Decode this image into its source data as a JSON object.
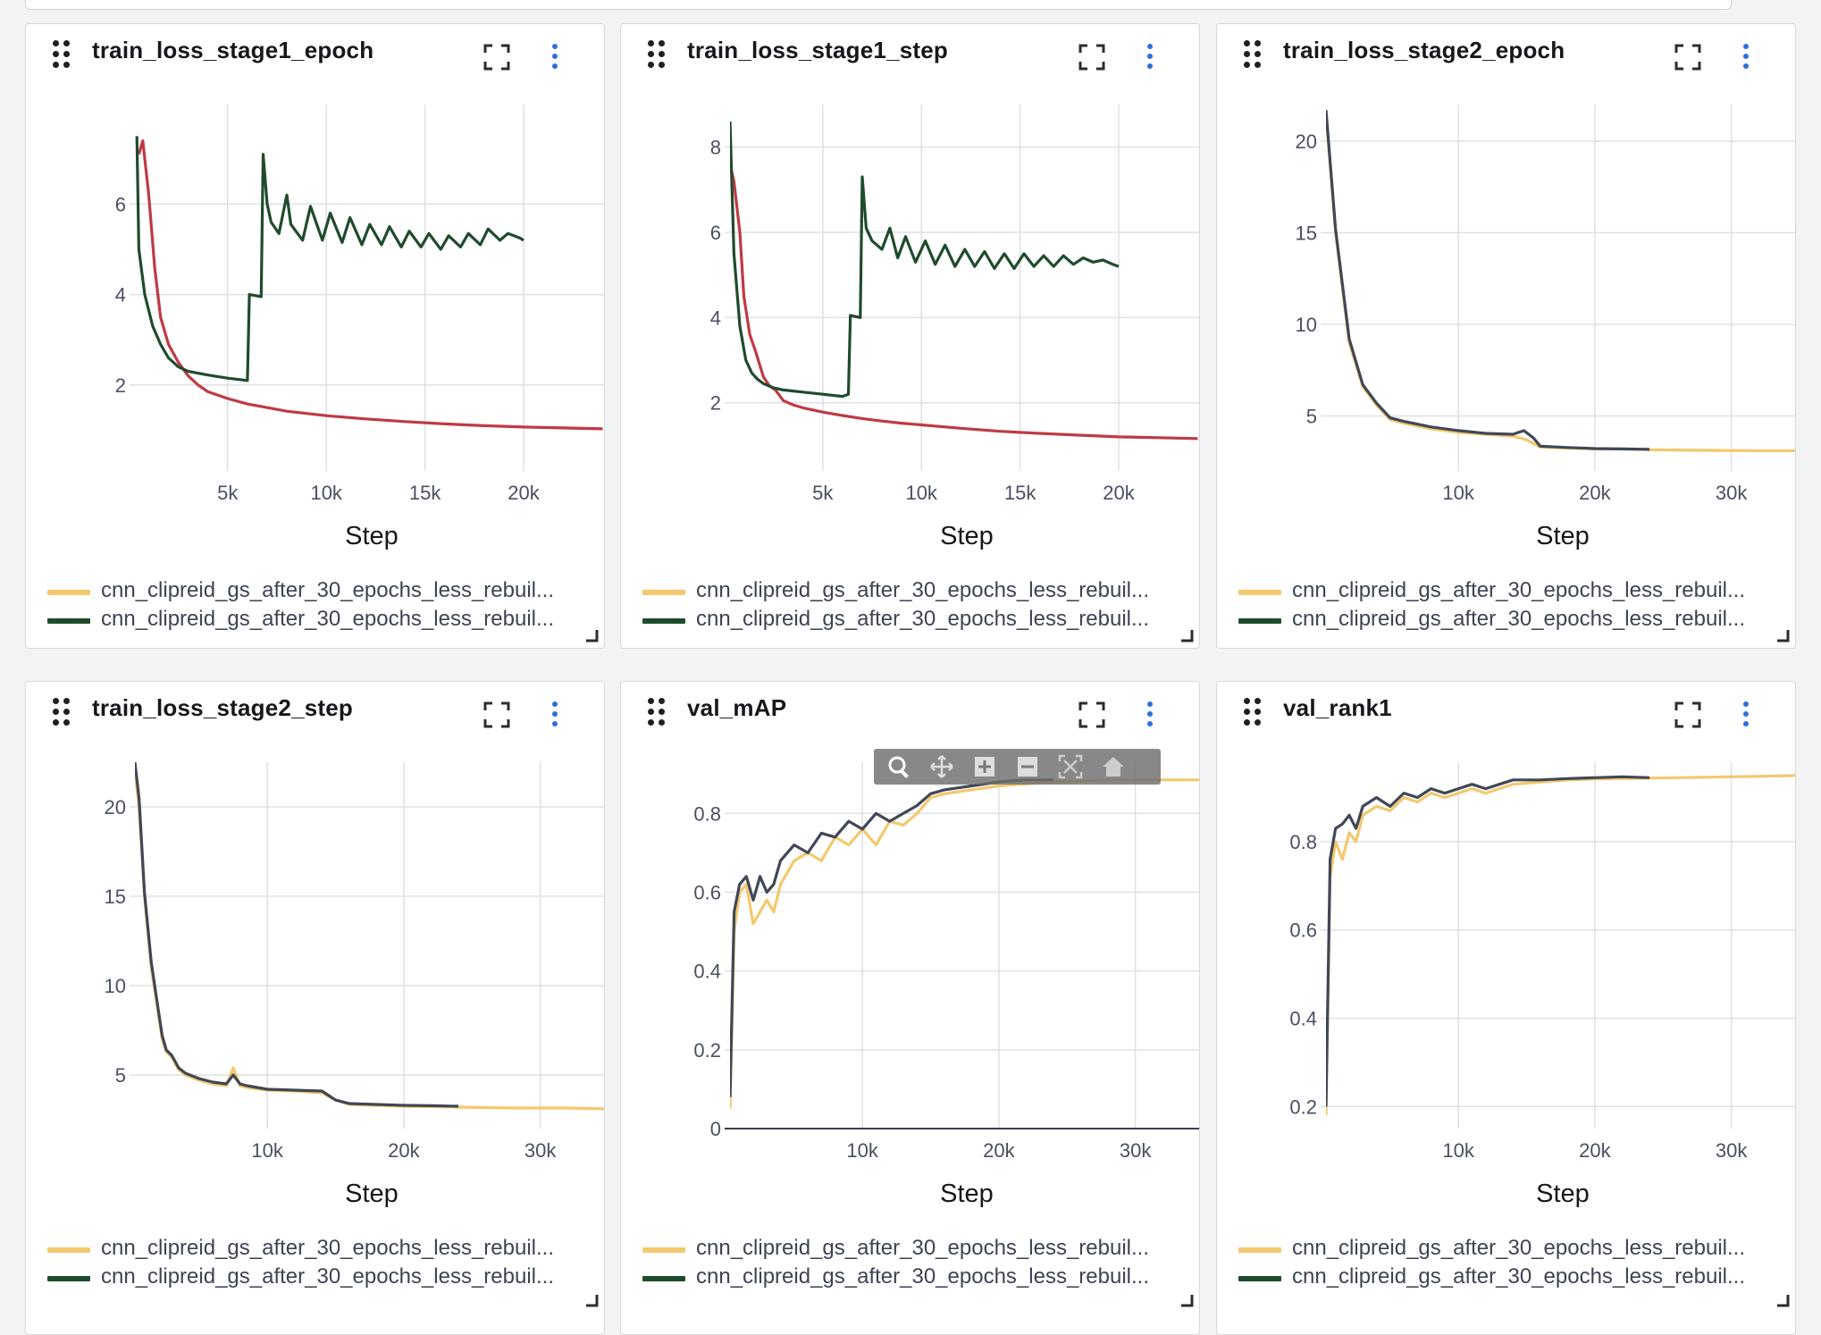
{
  "axis_title": "Step",
  "colors": {
    "run_a": "#f3c86e",
    "run_b": "#1f4b2c",
    "stage1_red": "#be3a45",
    "slate": "#404756",
    "grid": "#dde0e5",
    "menu": "#2f6fd6"
  },
  "legend": [
    {
      "label": "cnn_clipreid_gs_after_30_epochs_less_rebuil...",
      "color": "#f3c86e"
    },
    {
      "label": "cnn_clipreid_gs_after_30_epochs_less_rebuil...",
      "color": "#1f4b2c"
    }
  ],
  "icons": {
    "drag": "drag-handle-icon",
    "expand": "fullscreen-icon",
    "menu": "kebab-menu-icon",
    "resize": "resize-corner-icon",
    "modebar": [
      "zoom-icon",
      "pan-icon",
      "zoom-in-icon",
      "zoom-out-icon",
      "autoscale-icon",
      "reset-home-icon"
    ]
  },
  "panels": [
    {
      "title": "train_loss_stage1_epoch",
      "chart_data": {
        "type": "line",
        "xlabel": "Step",
        "xlim": [
          300,
          24300
        ],
        "ylim": [
          0.1,
          8.2
        ],
        "xticks": [
          5000,
          10000,
          15000,
          20000
        ],
        "xtick_labels": [
          "5k",
          "10k",
          "15k",
          "20k"
        ],
        "yticks": [
          2,
          4,
          6
        ],
        "ytick_labels": [
          "2",
          "4",
          "6"
        ],
        "series": [
          {
            "color": "#be3a45",
            "x": [
              500,
              700,
              1000,
              1300,
              1600,
              2000,
              2500,
              3000,
              3500,
              4000,
              5000,
              6000,
              8000,
              10000,
              12000,
              14000,
              16000,
              18000,
              20000,
              22000,
              24000
            ],
            "y": [
              7.1,
              7.4,
              6.2,
              4.6,
              3.5,
              2.9,
              2.5,
              2.2,
              2.0,
              1.85,
              1.7,
              1.58,
              1.42,
              1.32,
              1.25,
              1.19,
              1.14,
              1.1,
              1.07,
              1.05,
              1.03
            ]
          },
          {
            "color": "#1f4b2c",
            "x": [
              400,
              500,
              800,
              1200,
              1600,
              2000,
              2500,
              3000,
              4000,
              5000,
              6000,
              6100,
              6700,
              6800,
              7000,
              7200,
              7600,
              8000,
              8200,
              8800,
              9200,
              9800,
              10200,
              10800,
              11200,
              11800,
              12200,
              12800,
              13200,
              13800,
              14200,
              14800,
              15200,
              15800,
              16200,
              16800,
              17200,
              17800,
              18200,
              18800,
              19200,
              19800,
              20000
            ],
            "y": [
              7.5,
              5.0,
              4.0,
              3.3,
              2.9,
              2.6,
              2.4,
              2.3,
              2.22,
              2.15,
              2.1,
              4.0,
              3.95,
              7.1,
              6.0,
              5.6,
              5.35,
              6.2,
              5.55,
              5.2,
              5.95,
              5.2,
              5.8,
              5.15,
              5.7,
              5.1,
              5.55,
              5.1,
              5.5,
              5.05,
              5.4,
              5.05,
              5.35,
              5.0,
              5.3,
              5.05,
              5.35,
              5.1,
              5.45,
              5.2,
              5.35,
              5.25,
              5.2
            ]
          }
        ]
      }
    },
    {
      "title": "train_loss_stage1_step",
      "chart_data": {
        "type": "line",
        "xlabel": "Step",
        "xlim": [
          300,
          24300
        ],
        "ylim": [
          0.4,
          9.0
        ],
        "xticks": [
          5000,
          10000,
          15000,
          20000
        ],
        "xtick_labels": [
          "5k",
          "10k",
          "15k",
          "20k"
        ],
        "yticks": [
          2,
          4,
          6,
          8
        ],
        "ytick_labels": [
          "2",
          "4",
          "6",
          "8"
        ],
        "series": [
          {
            "color": "#be3a45",
            "x": [
              300,
              500,
              800,
              1000,
              1300,
              1600,
              2000,
              2300,
              2600,
              3000,
              3500,
              4000,
              5000,
              6000,
              7000,
              8000,
              9000,
              10000,
              12000,
              14000,
              16000,
              18000,
              20000,
              22000,
              24000
            ],
            "y": [
              7.6,
              7.2,
              6.0,
              4.5,
              3.6,
              3.2,
              2.6,
              2.4,
              2.3,
              2.05,
              1.95,
              1.88,
              1.78,
              1.7,
              1.63,
              1.57,
              1.52,
              1.48,
              1.4,
              1.33,
              1.28,
              1.24,
              1.2,
              1.18,
              1.16
            ]
          },
          {
            "color": "#1f4b2c",
            "x": [
              300,
              500,
              800,
              1100,
              1400,
              1700,
              2000,
              2500,
              3000,
              4000,
              5000,
              6000,
              6300,
              6400,
              6900,
              7000,
              7200,
              7500,
              8000,
              8400,
              8800,
              9200,
              9700,
              10200,
              10700,
              11200,
              11700,
              12200,
              12700,
              13200,
              13700,
              14200,
              14700,
              15200,
              15700,
              16200,
              16700,
              17200,
              17700,
              18200,
              18700,
              19200,
              19700,
              20000
            ],
            "y": [
              8.6,
              5.5,
              3.8,
              3.0,
              2.7,
              2.55,
              2.45,
              2.35,
              2.3,
              2.25,
              2.2,
              2.15,
              2.2,
              4.05,
              4.0,
              7.3,
              6.1,
              5.8,
              5.6,
              6.1,
              5.4,
              5.9,
              5.3,
              5.8,
              5.25,
              5.7,
              5.2,
              5.6,
              5.2,
              5.55,
              5.15,
              5.5,
              5.15,
              5.5,
              5.2,
              5.45,
              5.2,
              5.45,
              5.25,
              5.4,
              5.3,
              5.35,
              5.25,
              5.2
            ]
          }
        ]
      }
    },
    {
      "title": "train_loss_stage2_epoch",
      "chart_data": {
        "type": "line",
        "xlabel": "Step",
        "xlim": [
          300,
          35000
        ],
        "ylim": [
          2.0,
          22.0
        ],
        "xticks": [
          10000,
          20000,
          30000
        ],
        "xtick_labels": [
          "10k",
          "20k",
          "30k"
        ],
        "yticks": [
          5,
          10,
          15,
          20
        ],
        "ytick_labels": [
          "5",
          "10",
          "15",
          "20"
        ],
        "series": [
          {
            "color": "#f3c86e",
            "x": [
              300,
              1000,
              2000,
              3000,
              4000,
              5000,
              6000,
              8000,
              10000,
              12000,
              14000,
              15000,
              16000,
              18000,
              20000,
              22000,
              24000,
              28000,
              32000,
              35000
            ],
            "y": [
              21.5,
              15.0,
              9.0,
              6.6,
              5.6,
              4.8,
              4.6,
              4.3,
              4.1,
              4.0,
              3.9,
              3.7,
              3.3,
              3.25,
              3.2,
              3.2,
              3.15,
              3.12,
              3.1,
              3.1
            ]
          },
          {
            "color": "#404756",
            "x": [
              300,
              1000,
              2000,
              3000,
              4000,
              5000,
              6000,
              8000,
              10000,
              12000,
              14000,
              14800,
              15500,
              16000,
              18000,
              20000,
              22000,
              24000
            ],
            "y": [
              21.7,
              15.2,
              9.2,
              6.7,
              5.7,
              4.9,
              4.7,
              4.4,
              4.2,
              4.05,
              4.0,
              4.2,
              3.8,
              3.35,
              3.28,
              3.22,
              3.2,
              3.18
            ]
          }
        ]
      }
    },
    {
      "title": "train_loss_stage2_step",
      "chart_data": {
        "type": "line",
        "xlabel": "Step",
        "xlim": [
          300,
          35000
        ],
        "ylim": [
          2.0,
          22.5
        ],
        "xticks": [
          10000,
          20000,
          30000
        ],
        "xtick_labels": [
          "10k",
          "20k",
          "30k"
        ],
        "yticks": [
          5,
          10,
          15,
          20
        ],
        "ytick_labels": [
          "5",
          "10",
          "15",
          "20"
        ],
        "series": [
          {
            "color": "#f3c86e",
            "x": [
              300,
              600,
              1000,
              1500,
              2000,
              2300,
              2600,
              3000,
              3500,
              4000,
              5000,
              6000,
              7000,
              7500,
              8000,
              8500,
              10000,
              12000,
              14000,
              15000,
              16000,
              18000,
              20000,
              24000,
              28000,
              32000,
              35000
            ],
            "y": [
              22.0,
              20.0,
              15.0,
              11.0,
              8.5,
              7.0,
              6.3,
              6.0,
              5.3,
              5.0,
              4.7,
              4.5,
              4.4,
              5.4,
              4.4,
              4.3,
              4.15,
              4.1,
              4.0,
              3.6,
              3.35,
              3.3,
              3.25,
              3.2,
              3.15,
              3.15,
              3.1
            ]
          },
          {
            "color": "#404756",
            "x": [
              300,
              600,
              1000,
              1500,
              2000,
              2300,
              2600,
              3000,
              3500,
              4000,
              5000,
              6000,
              7000,
              7500,
              8000,
              8500,
              10000,
              12000,
              14000,
              15000,
              16000,
              18000,
              20000,
              22000,
              24000
            ],
            "y": [
              22.5,
              20.5,
              15.2,
              11.3,
              8.7,
              7.2,
              6.4,
              6.1,
              5.4,
              5.1,
              4.8,
              4.6,
              4.5,
              5.0,
              4.5,
              4.4,
              4.2,
              4.15,
              4.1,
              3.6,
              3.4,
              3.35,
              3.3,
              3.28,
              3.25
            ]
          }
        ]
      }
    },
    {
      "title": "val_mAP",
      "chart_data": {
        "type": "line",
        "xlabel": "Step",
        "xlim": [
          300,
          35000
        ],
        "ylim": [
          0.0,
          0.93
        ],
        "xticks": [
          10000,
          20000,
          30000
        ],
        "xtick_labels": [
          "10k",
          "20k",
          "30k"
        ],
        "yticks": [
          0,
          0.2,
          0.4,
          0.6,
          0.8
        ],
        "ytick_labels": [
          "0",
          "0.2",
          "0.4",
          "0.6",
          "0.8"
        ],
        "series": [
          {
            "color": "#f3c86e",
            "x": [
              300,
              600,
              1000,
              1500,
              2000,
              2500,
              3000,
              3500,
              4000,
              5000,
              6000,
              7000,
              8000,
              9000,
              10000,
              11000,
              12000,
              13000,
              14000,
              15000,
              16000,
              18000,
              20000,
              24000,
              28000,
              32000,
              35000
            ],
            "y": [
              0.05,
              0.5,
              0.6,
              0.62,
              0.52,
              0.55,
              0.58,
              0.55,
              0.62,
              0.68,
              0.7,
              0.68,
              0.74,
              0.72,
              0.76,
              0.72,
              0.78,
              0.77,
              0.8,
              0.84,
              0.85,
              0.86,
              0.87,
              0.88,
              0.885,
              0.885,
              0.885
            ]
          },
          {
            "color": "#404756",
            "x": [
              300,
              600,
              1000,
              1500,
              2000,
              2500,
              3000,
              3500,
              4000,
              5000,
              6000,
              7000,
              8000,
              9000,
              10000,
              11000,
              12000,
              13000,
              14000,
              15000,
              16000,
              18000,
              20000,
              22000,
              24000
            ],
            "y": [
              0.08,
              0.55,
              0.62,
              0.64,
              0.58,
              0.64,
              0.6,
              0.62,
              0.68,
              0.72,
              0.7,
              0.75,
              0.74,
              0.78,
              0.76,
              0.8,
              0.78,
              0.8,
              0.82,
              0.85,
              0.86,
              0.87,
              0.88,
              0.885,
              0.885
            ]
          }
        ]
      }
    },
    {
      "title": "val_rank1",
      "chart_data": {
        "type": "line",
        "xlabel": "Step",
        "xlim": [
          300,
          35000
        ],
        "ylim": [
          0.15,
          0.98
        ],
        "xticks": [
          10000,
          20000,
          30000
        ],
        "xtick_labels": [
          "10k",
          "20k",
          "30k"
        ],
        "yticks": [
          0.2,
          0.4,
          0.6,
          0.8
        ],
        "ytick_labels": [
          "0.2",
          "0.4",
          "0.6",
          "0.8"
        ],
        "series": [
          {
            "color": "#f3c86e",
            "x": [
              300,
              600,
              1000,
              1500,
              2000,
              2500,
              3000,
              4000,
              5000,
              6000,
              7000,
              8000,
              9000,
              10000,
              11000,
              12000,
              13000,
              14000,
              16000,
              18000,
              20000,
              24000,
              28000,
              32000,
              35000
            ],
            "y": [
              0.18,
              0.72,
              0.8,
              0.76,
              0.82,
              0.8,
              0.86,
              0.88,
              0.87,
              0.9,
              0.89,
              0.91,
              0.9,
              0.91,
              0.92,
              0.91,
              0.92,
              0.93,
              0.935,
              0.94,
              0.942,
              0.944,
              0.946,
              0.948,
              0.95
            ]
          },
          {
            "color": "#404756",
            "x": [
              300,
              600,
              1000,
              1500,
              2000,
              2500,
              3000,
              4000,
              5000,
              6000,
              7000,
              8000,
              9000,
              10000,
              11000,
              12000,
              13000,
              14000,
              16000,
              18000,
              20000,
              22000,
              24000
            ],
            "y": [
              0.2,
              0.76,
              0.83,
              0.84,
              0.86,
              0.83,
              0.88,
              0.9,
              0.88,
              0.91,
              0.9,
              0.92,
              0.91,
              0.92,
              0.93,
              0.92,
              0.93,
              0.94,
              0.94,
              0.943,
              0.945,
              0.947,
              0.945
            ]
          }
        ]
      }
    }
  ]
}
